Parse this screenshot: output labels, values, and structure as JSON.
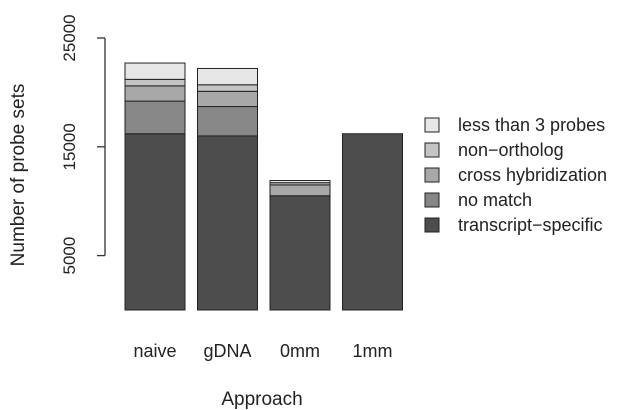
{
  "chart_data": {
    "type": "bar",
    "stacked": true,
    "xlabel": "Approach",
    "ylabel": "Number of probe sets",
    "categories": [
      "naive",
      "gDNA",
      "0mm",
      "1mm"
    ],
    "yticks": [
      5000,
      15000,
      25000
    ],
    "ylim": [
      0,
      25000
    ],
    "grid": false,
    "legend_position": "right",
    "series": [
      {
        "name": "transcript−specific",
        "color": "#4d4d4d",
        "values": [
          16200,
          16000,
          10500,
          16200
        ]
      },
      {
        "name": "no match",
        "color": "#878787",
        "values": [
          3000,
          2700,
          0,
          0
        ]
      },
      {
        "name": "cross hybridization",
        "color": "#a8a8a8",
        "values": [
          1400,
          1400,
          1000,
          0
        ]
      },
      {
        "name": "non−ortholog",
        "color": "#c4c4c4",
        "values": [
          600,
          600,
          200,
          0
        ]
      },
      {
        "name": "less than 3 probes",
        "color": "#e6e6e6",
        "values": [
          1500,
          1500,
          200,
          0
        ]
      }
    ]
  }
}
